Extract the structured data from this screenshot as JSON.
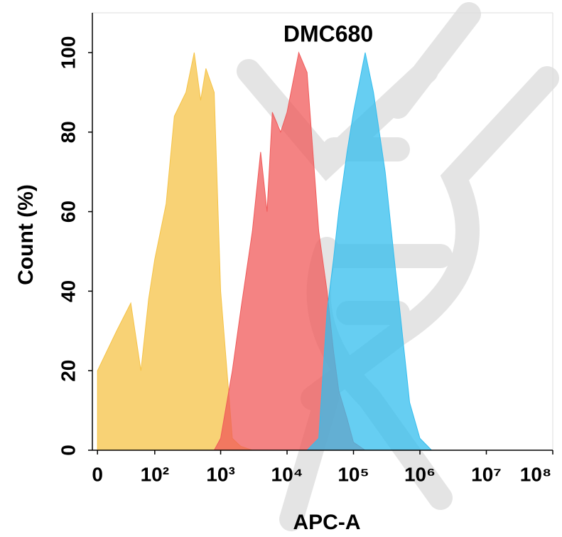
{
  "chart_data": {
    "type": "area",
    "title": "DMC680",
    "xlabel": "APC-A",
    "ylabel": "Count (%)",
    "x": [
      0,
      20,
      40,
      60,
      80,
      100,
      150,
      200,
      300,
      400,
      500,
      600,
      800,
      1000,
      1500,
      2000,
      3000,
      4000,
      5000,
      6000,
      8000,
      10000,
      15000,
      20000,
      30000,
      40000,
      50000,
      60000,
      80000,
      100000,
      150000,
      200000,
      300000,
      400000,
      500000,
      700000,
      1000000,
      1500000,
      2000000
    ],
    "series": [
      {
        "color": "#f5c347",
        "values": [
          20,
          30,
          37,
          20,
          38,
          48,
          62,
          84,
          90,
          100,
          88,
          96,
          90,
          40,
          3,
          1,
          0,
          0,
          0,
          0,
          0,
          0,
          0,
          0,
          0,
          0,
          0,
          0,
          0,
          0,
          0,
          0,
          0,
          0,
          0,
          0,
          0,
          0,
          0
        ]
      },
      {
        "color": "#f05a5a",
        "values": [
          0,
          0,
          0,
          0,
          0,
          0,
          0,
          0,
          0,
          0,
          0,
          0,
          0,
          3,
          20,
          35,
          55,
          75,
          60,
          85,
          80,
          85,
          100,
          95,
          55,
          40,
          25,
          15,
          8,
          2,
          0,
          0,
          0,
          0,
          0,
          0,
          0,
          0,
          0
        ]
      },
      {
        "color": "#33bdee",
        "values": [
          0,
          0,
          0,
          0,
          0,
          0,
          0,
          0,
          0,
          0,
          0,
          0,
          0,
          0,
          0,
          0,
          0,
          0,
          0,
          0,
          0,
          0,
          0,
          0,
          3,
          35,
          48,
          60,
          75,
          85,
          100,
          90,
          70,
          50,
          35,
          12,
          3,
          0,
          0
        ]
      }
    ],
    "xlim": [
      -5,
      100000000
    ],
    "xticks": [
      {
        "value": 0,
        "label": "0"
      },
      {
        "value": 100,
        "label": "10²"
      },
      {
        "value": 1000,
        "label": "10³"
      },
      {
        "value": 10000,
        "label": "10⁴"
      },
      {
        "value": 100000,
        "label": "10⁵"
      },
      {
        "value": 1000000,
        "label": "10⁶"
      },
      {
        "value": 10000000,
        "label": "10⁷"
      },
      {
        "value": 100000000,
        "label": "10⁸"
      }
    ],
    "ylim": [
      0,
      110
    ],
    "yticks": [
      0,
      20,
      40,
      60,
      80,
      100
    ]
  }
}
